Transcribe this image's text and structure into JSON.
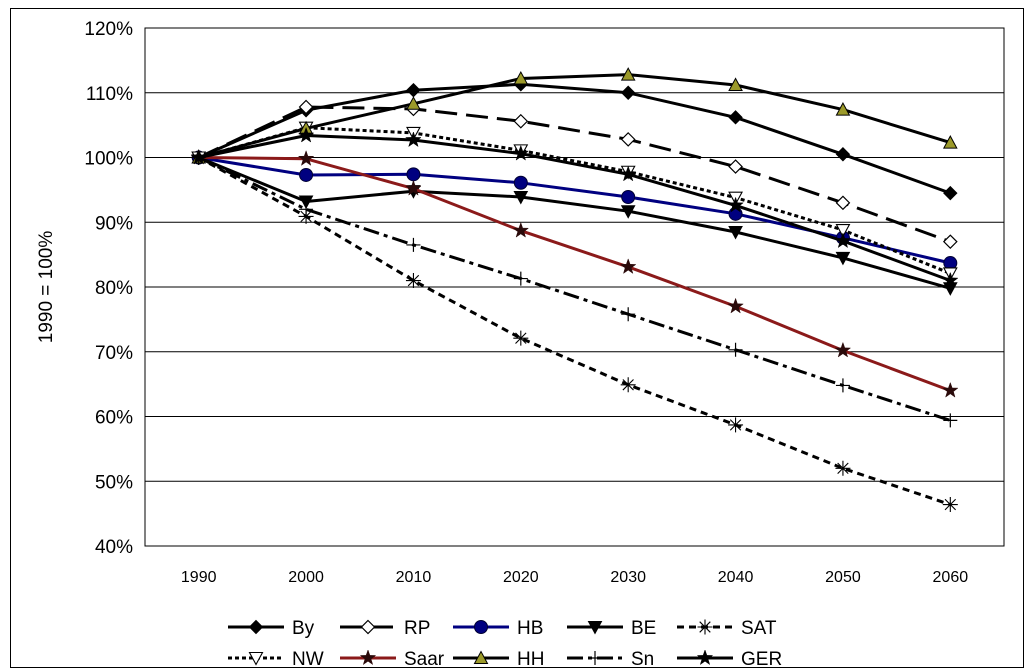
{
  "chart_data": {
    "type": "line",
    "ylabel": "1990 = 100%",
    "x": [
      "1990",
      "2000",
      "2010",
      "2020",
      "2030",
      "2040",
      "2050",
      "2060"
    ],
    "ylim": [
      40,
      120
    ],
    "yticks": [
      "40%",
      "50%",
      "60%",
      "70%",
      "80%",
      "90%",
      "100%",
      "110%",
      "120%"
    ],
    "grid": "horizontal",
    "legend_position": "bottom",
    "series": [
      {
        "name": "By",
        "values": [
          100,
          107.3,
          110.4,
          111.3,
          110.0,
          106.2,
          100.5,
          94.5
        ],
        "color": "#000000",
        "dash": "solid",
        "marker": "diamond-filled"
      },
      {
        "name": "RP",
        "values": [
          100,
          107.8,
          107.5,
          105.6,
          102.8,
          98.6,
          93.0,
          87.0
        ],
        "color": "#000000",
        "dash": "long-dash",
        "marker": "diamond-open"
      },
      {
        "name": "HB",
        "values": [
          100,
          97.3,
          97.4,
          96.1,
          93.9,
          91.3,
          87.6,
          83.7
        ],
        "color": "#000080",
        "dash": "solid",
        "marker": "circle-filled"
      },
      {
        "name": "BE",
        "values": [
          100,
          93.2,
          94.8,
          93.9,
          91.7,
          88.5,
          84.5,
          79.8
        ],
        "color": "#000000",
        "dash": "solid",
        "marker": "triangle-down-filled"
      },
      {
        "name": "SAT",
        "values": [
          100,
          90.9,
          81.0,
          72.1,
          64.9,
          58.7,
          52.0,
          46.4
        ],
        "color": "#000000",
        "dash": "short-dash",
        "marker": "asterisk"
      },
      {
        "name": "NW",
        "values": [
          100,
          104.6,
          103.8,
          101.1,
          97.8,
          93.8,
          88.8,
          82.1
        ],
        "color": "#000000",
        "dash": "dotted",
        "marker": "triangle-down-open"
      },
      {
        "name": "Saar",
        "values": [
          100,
          99.8,
          95.2,
          88.7,
          83.1,
          77.0,
          70.2,
          64.0
        ],
        "color": "#8b1a1a",
        "dash": "solid",
        "marker": "star"
      },
      {
        "name": "HH",
        "values": [
          100,
          104.5,
          108.3,
          112.2,
          112.8,
          111.2,
          107.4,
          102.3
        ],
        "color": "#000000",
        "dash": "solid",
        "marker": "triangle-up-olive"
      },
      {
        "name": "Sn",
        "values": [
          100,
          92.0,
          86.5,
          81.3,
          75.8,
          70.3,
          64.8,
          59.4
        ],
        "color": "#000000",
        "dash": "dash-dot",
        "marker": "plus"
      },
      {
        "name": "GER",
        "values": [
          100,
          103.4,
          102.7,
          100.6,
          97.4,
          92.6,
          87.1,
          81.0
        ],
        "color": "#000000",
        "dash": "solid",
        "marker": "star"
      }
    ]
  }
}
